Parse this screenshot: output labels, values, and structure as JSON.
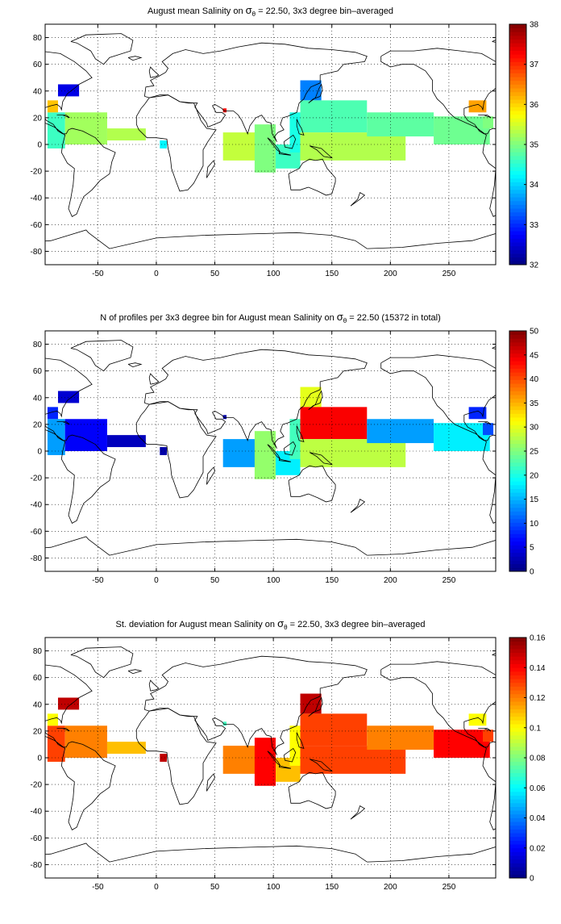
{
  "chart_data": [
    {
      "type": "heatmap",
      "title_parts": {
        "pre": "August mean Salinity on ",
        "sigma": "σ",
        "sub": "θ",
        "post": " = 22.50, 3x3 degree bin–averaged"
      },
      "xlabel": "",
      "ylabel": "",
      "xlim": [
        -95,
        290
      ],
      "ylim": [
        -90,
        90
      ],
      "xticks": [
        -50,
        0,
        50,
        100,
        150,
        200,
        250
      ],
      "yticks": [
        -80,
        -60,
        -40,
        -20,
        0,
        20,
        40,
        60,
        80
      ],
      "grid": true,
      "colormap": "jet",
      "color_range": [
        32,
        38
      ],
      "colorbar_ticks": [
        32,
        33,
        34,
        35,
        36,
        37,
        38
      ],
      "regions": [
        {
          "x": [
            -93,
            -78
          ],
          "y": [
            -3,
            24
          ],
          "value": 34.6
        },
        {
          "x": [
            -93,
            -84
          ],
          "y": [
            24,
            33
          ],
          "value": 36.1
        },
        {
          "x": [
            -84,
            -66
          ],
          "y": [
            36,
            45
          ],
          "value": 32.6
        },
        {
          "x": [
            -78,
            -42
          ],
          "y": [
            0,
            24
          ],
          "value": 35.2
        },
        {
          "x": [
            -42,
            -9
          ],
          "y": [
            3,
            12
          ],
          "value": 35.3
        },
        {
          "x": [
            3,
            9
          ],
          "y": [
            -3,
            3
          ],
          "value": 34.2
        },
        {
          "x": [
            57,
            60
          ],
          "y": [
            24,
            27
          ],
          "value": 37.2
        },
        {
          "x": [
            57,
            90
          ],
          "y": [
            -12,
            9
          ],
          "value": 35.4
        },
        {
          "x": [
            84,
            102
          ],
          "y": [
            -21,
            15
          ],
          "value": 35.0
        },
        {
          "x": [
            102,
            123
          ],
          "y": [
            -18,
            0
          ],
          "value": 34.6
        },
        {
          "x": [
            114,
            123
          ],
          "y": [
            -6,
            24
          ],
          "value": 34.4
        },
        {
          "x": [
            123,
            141
          ],
          "y": [
            33,
            48
          ],
          "value": 33.5
        },
        {
          "x": [
            123,
            180
          ],
          "y": [
            9,
            33
          ],
          "value": 34.7
        },
        {
          "x": [
            123,
            213
          ],
          "y": [
            -12,
            9
          ],
          "value": 35.3
        },
        {
          "x": [
            180,
            237
          ],
          "y": [
            6,
            24
          ],
          "value": 34.8
        },
        {
          "x": [
            237,
            285
          ],
          "y": [
            0,
            21
          ],
          "value": 34.9
        },
        {
          "x": [
            267,
            282
          ],
          "y": [
            24,
            33
          ],
          "value": 36.3
        },
        {
          "x": [
            279,
            288
          ],
          "y": [
            12,
            21
          ],
          "value": 35.0
        }
      ]
    },
    {
      "type": "heatmap",
      "title_parts": {
        "pre": "N of profiles per 3x3 degree bin for August mean Salinity on ",
        "sigma": "σ",
        "sub": "θ",
        "post": " = 22.50 (15372 in total)"
      },
      "xlabel": "",
      "ylabel": "",
      "xlim": [
        -95,
        290
      ],
      "ylim": [
        -90,
        90
      ],
      "xticks": [
        -50,
        0,
        50,
        100,
        150,
        200,
        250
      ],
      "yticks": [
        -80,
        -60,
        -40,
        -20,
        0,
        20,
        40,
        60,
        80
      ],
      "grid": true,
      "colormap": "jet",
      "color_range": [
        0,
        50
      ],
      "colorbar_ticks": [
        0,
        5,
        10,
        15,
        20,
        25,
        30,
        35,
        40,
        45,
        50
      ],
      "regions": [
        {
          "x": [
            -93,
            -78
          ],
          "y": [
            -3,
            24
          ],
          "value": 14
        },
        {
          "x": [
            -93,
            -84
          ],
          "y": [
            24,
            33
          ],
          "value": 8
        },
        {
          "x": [
            -84,
            -66
          ],
          "y": [
            36,
            45
          ],
          "value": 4
        },
        {
          "x": [
            -78,
            -42
          ],
          "y": [
            0,
            24
          ],
          "value": 6
        },
        {
          "x": [
            -42,
            -9
          ],
          "y": [
            3,
            12
          ],
          "value": 3
        },
        {
          "x": [
            3,
            9
          ],
          "y": [
            -3,
            3
          ],
          "value": 2
        },
        {
          "x": [
            57,
            60
          ],
          "y": [
            24,
            27
          ],
          "value": 2
        },
        {
          "x": [
            57,
            90
          ],
          "y": [
            -12,
            9
          ],
          "value": 14
        },
        {
          "x": [
            84,
            102
          ],
          "y": [
            -21,
            15
          ],
          "value": 26
        },
        {
          "x": [
            102,
            123
          ],
          "y": [
            -18,
            0
          ],
          "value": 18
        },
        {
          "x": [
            114,
            123
          ],
          "y": [
            -6,
            24
          ],
          "value": 22
        },
        {
          "x": [
            123,
            141
          ],
          "y": [
            33,
            48
          ],
          "value": 30
        },
        {
          "x": [
            123,
            180
          ],
          "y": [
            9,
            33
          ],
          "value": 44
        },
        {
          "x": [
            123,
            213
          ],
          "y": [
            -12,
            9
          ],
          "value": 28
        },
        {
          "x": [
            180,
            237
          ],
          "y": [
            6,
            24
          ],
          "value": 14
        },
        {
          "x": [
            237,
            285
          ],
          "y": [
            0,
            21
          ],
          "value": 18
        },
        {
          "x": [
            267,
            282
          ],
          "y": [
            24,
            33
          ],
          "value": 8
        },
        {
          "x": [
            279,
            288
          ],
          "y": [
            12,
            21
          ],
          "value": 10
        }
      ]
    },
    {
      "type": "heatmap",
      "title_parts": {
        "pre": "St. deviation for August mean Salinity on ",
        "sigma": "σ",
        "sub": "θ",
        "post": " = 22.50, 3x3 degree bin–averaged"
      },
      "xlabel": "",
      "ylabel": "",
      "xlim": [
        -95,
        290
      ],
      "ylim": [
        -90,
        90
      ],
      "xticks": [
        -50,
        0,
        50,
        100,
        150,
        200,
        250
      ],
      "yticks": [
        -80,
        -60,
        -40,
        -20,
        0,
        20,
        40,
        60,
        80
      ],
      "grid": true,
      "colormap": "jet",
      "color_range": [
        0,
        0.16
      ],
      "colorbar_ticks": [
        0,
        0.02,
        0.04,
        0.06,
        0.08,
        0.1,
        0.12,
        0.14,
        0.16
      ],
      "regions": [
        {
          "x": [
            -93,
            -78
          ],
          "y": [
            -3,
            24
          ],
          "value": 0.13
        },
        {
          "x": [
            -93,
            -84
          ],
          "y": [
            24,
            33
          ],
          "value": 0.1
        },
        {
          "x": [
            -84,
            -66
          ],
          "y": [
            36,
            45
          ],
          "value": 0.15
        },
        {
          "x": [
            -78,
            -42
          ],
          "y": [
            0,
            24
          ],
          "value": 0.12
        },
        {
          "x": [
            -42,
            -9
          ],
          "y": [
            3,
            12
          ],
          "value": 0.11
        },
        {
          "x": [
            3,
            9
          ],
          "y": [
            -3,
            3
          ],
          "value": 0.15
        },
        {
          "x": [
            57,
            60
          ],
          "y": [
            24,
            27
          ],
          "value": 0.07
        },
        {
          "x": [
            57,
            90
          ],
          "y": [
            -12,
            9
          ],
          "value": 0.12
        },
        {
          "x": [
            84,
            102
          ],
          "y": [
            -21,
            15
          ],
          "value": 0.14
        },
        {
          "x": [
            102,
            123
          ],
          "y": [
            -18,
            0
          ],
          "value": 0.11
        },
        {
          "x": [
            114,
            123
          ],
          "y": [
            -6,
            24
          ],
          "value": 0.1
        },
        {
          "x": [
            123,
            141
          ],
          "y": [
            33,
            48
          ],
          "value": 0.15
        },
        {
          "x": [
            123,
            180
          ],
          "y": [
            9,
            33
          ],
          "value": 0.13
        },
        {
          "x": [
            123,
            213
          ],
          "y": [
            -12,
            9
          ],
          "value": 0.13
        },
        {
          "x": [
            180,
            237
          ],
          "y": [
            6,
            24
          ],
          "value": 0.12
        },
        {
          "x": [
            237,
            285
          ],
          "y": [
            0,
            21
          ],
          "value": 0.14
        },
        {
          "x": [
            267,
            282
          ],
          "y": [
            24,
            33
          ],
          "value": 0.1
        },
        {
          "x": [
            279,
            288
          ],
          "y": [
            12,
            21
          ],
          "value": 0.13
        }
      ]
    }
  ]
}
